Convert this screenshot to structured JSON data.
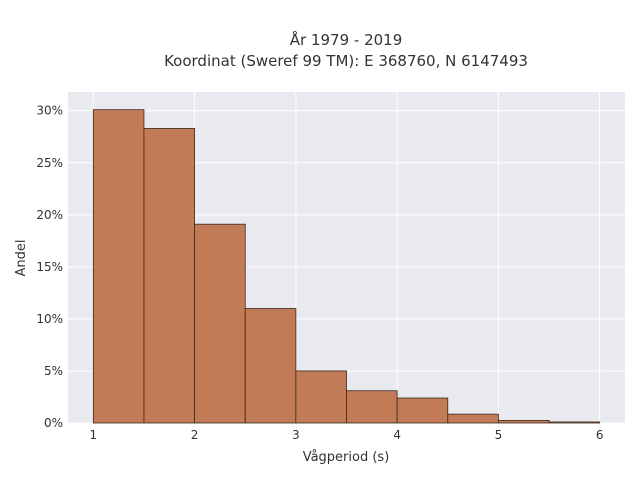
{
  "chart_data": {
    "type": "bar",
    "title_lines": [
      "År 1979 - 2019",
      "Koordinat (Sweref 99 TM): E 368760, N 6147493"
    ],
    "xlabel": "Vågperiod (s)",
    "ylabel": "Andel",
    "x_ticks": [
      1,
      2,
      3,
      4,
      5,
      6
    ],
    "x_tick_labels": [
      "1",
      "2",
      "3",
      "4",
      "5",
      "6"
    ],
    "y_ticks": [
      0,
      5,
      10,
      15,
      20,
      25,
      30
    ],
    "y_tick_labels": [
      "0%",
      "5%",
      "10%",
      "15%",
      "20%",
      "25%",
      "30%"
    ],
    "xlim": [
      0.75,
      6.25
    ],
    "ylim": [
      0,
      31.8
    ],
    "bin_edges": [
      1,
      1.5,
      2,
      2.5,
      3,
      3.5,
      4,
      4.5,
      5,
      5.5,
      6
    ],
    "values": [
      30.1,
      28.3,
      19.1,
      11.0,
      5.0,
      3.1,
      2.4,
      0.85,
      0.25,
      0.1
    ],
    "bar_color": "#c17b57",
    "bar_edge_color": "#3b2a20",
    "plot_background": "#e9e9f0",
    "grid": true,
    "grid_color": "#ffffff",
    "legend": "none"
  }
}
